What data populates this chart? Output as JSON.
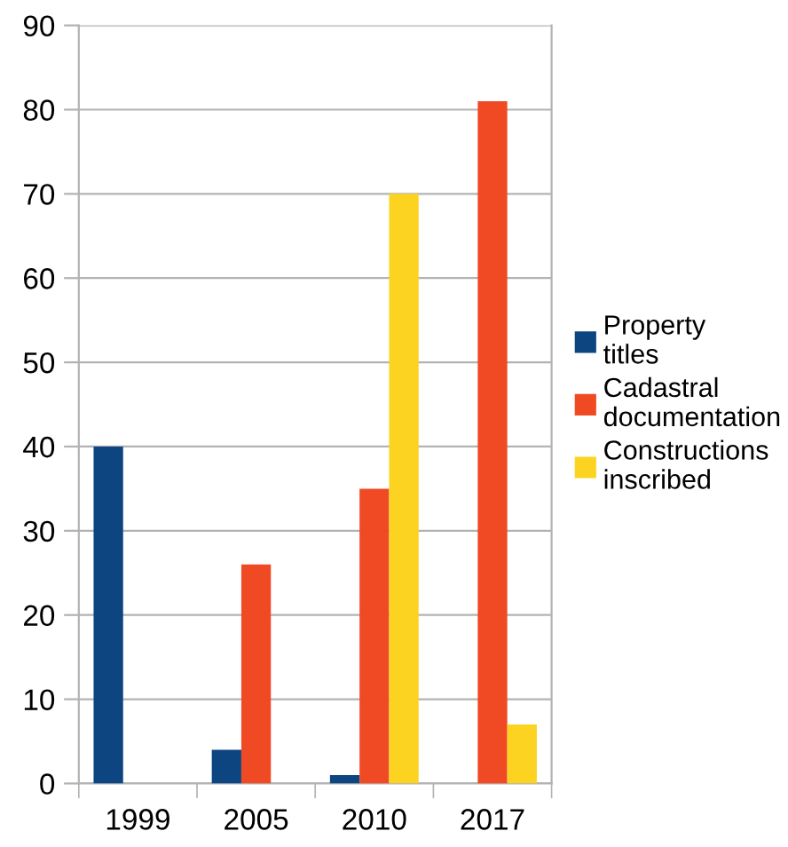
{
  "chart_data": {
    "type": "bar",
    "categories": [
      "1999",
      "2005",
      "2010",
      "2017"
    ],
    "series": [
      {
        "name": "Property titles",
        "color": "#0d4581",
        "values": [
          40,
          4,
          1,
          null
        ]
      },
      {
        "name": "Cadastral documentation",
        "color": "#f04a24",
        "values": [
          null,
          26,
          35,
          81
        ]
      },
      {
        "name": "Constructions inscribed",
        "color": "#fdd321",
        "values": [
          null,
          null,
          70,
          7
        ]
      }
    ],
    "ylim": [
      0,
      90
    ],
    "yticks": [
      0,
      10,
      20,
      30,
      40,
      50,
      60,
      70,
      80,
      90
    ],
    "grid": "y",
    "legend": "right"
  }
}
